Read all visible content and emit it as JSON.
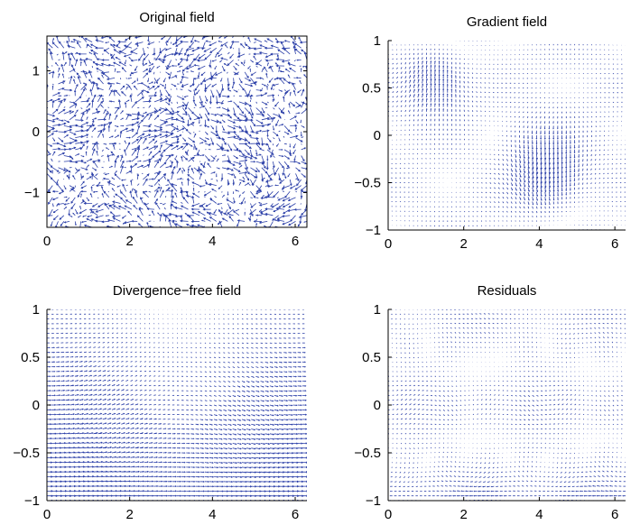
{
  "figure": {
    "arrow_color": "#2b3fa8",
    "axes_color": "#000000",
    "background": "#ffffff"
  },
  "chart_data": [
    {
      "type": "quiver",
      "title": "Original field",
      "xlabel": "",
      "ylabel": "",
      "xlim": [
        0,
        6.2832
      ],
      "ylim": [
        -1.5708,
        1.5708
      ],
      "xticks": [
        0,
        2,
        4,
        6
      ],
      "xtick_labels": [
        "0",
        "2",
        "4",
        "6"
      ],
      "yticks": [
        -1,
        0,
        1
      ],
      "ytick_labels": [
        "−1",
        "0",
        "1"
      ],
      "box": true,
      "grid": false,
      "field_pattern": "noisy",
      "grid_points": [
        46,
        32
      ]
    },
    {
      "type": "quiver",
      "title": "Gradient field",
      "xlabel": "",
      "ylabel": "",
      "xlim": [
        0,
        6.2832
      ],
      "ylim": [
        -1,
        1
      ],
      "xticks": [
        0,
        2,
        4,
        6
      ],
      "xtick_labels": [
        "0",
        "2",
        "4",
        "6"
      ],
      "yticks": [
        -1,
        -0.5,
        0,
        0.5,
        1
      ],
      "ytick_labels": [
        "−1",
        "−0.5",
        "0",
        "0.5",
        "1"
      ],
      "box": false,
      "grid": false,
      "field_pattern": "gradient",
      "grid_points": [
        56,
        40
      ]
    },
    {
      "type": "quiver",
      "title": "Divergence−free field",
      "xlabel": "",
      "ylabel": "",
      "xlim": [
        0,
        6.2832
      ],
      "ylim": [
        -1,
        1
      ],
      "xticks": [
        0,
        2,
        4,
        6
      ],
      "xtick_labels": [
        "0",
        "2",
        "4",
        "6"
      ],
      "yticks": [
        -1,
        -0.5,
        0,
        0.5,
        1
      ],
      "ytick_labels": [
        "−1",
        "−0.5",
        "0",
        "0.5",
        "1"
      ],
      "box": false,
      "grid": false,
      "field_pattern": "divergence-free",
      "grid_points": [
        56,
        40
      ]
    },
    {
      "type": "quiver",
      "title": "Residuals",
      "xlabel": "",
      "ylabel": "",
      "xlim": [
        0,
        6.2832
      ],
      "ylim": [
        -1,
        1
      ],
      "xticks": [
        0,
        2,
        4,
        6
      ],
      "xtick_labels": [
        "0",
        "2",
        "4",
        "6"
      ],
      "yticks": [
        -1,
        -0.5,
        0,
        0.5,
        1
      ],
      "ytick_labels": [
        "−1",
        "−0.5",
        "0",
        "0.5",
        "1"
      ],
      "box": false,
      "grid": false,
      "field_pattern": "residual",
      "grid_points": [
        56,
        40
      ]
    }
  ]
}
